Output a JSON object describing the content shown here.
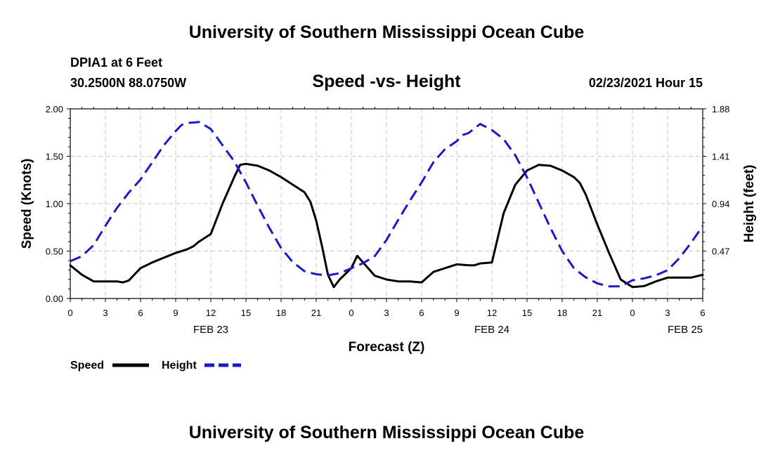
{
  "header": {
    "title_top": "University of Southern Mississippi Ocean Cube",
    "title_bottom": "University of Southern Mississippi Ocean Cube",
    "station": "DPIA1 at 6 Feet",
    "coords": "30.2500N 88.0750W",
    "datetime": "02/23/2021 Hour 15"
  },
  "chart_data": {
    "type": "line",
    "title": "Speed -vs- Height",
    "xlabel": "Forecast (Z)",
    "ylabel_left": "Speed (Knots)",
    "ylabel_right": "Height (feet)",
    "x_range": [
      0,
      54
    ],
    "x_unit": "hours from FEB 23 00Z",
    "ylim_left": [
      0,
      2.0
    ],
    "ylim_right": [
      0,
      1.88
    ],
    "yticks_left": [
      "0.00",
      "0.50",
      "1.00",
      "1.50",
      "2.00"
    ],
    "yticks_right": [
      "0.47",
      "0.94",
      "1.41",
      "1.88"
    ],
    "yticks_right_values": [
      0.47,
      0.94,
      1.41,
      1.88
    ],
    "xtick_labels": [
      "0",
      "3",
      "6",
      "9",
      "12",
      "15",
      "18",
      "21",
      "0",
      "3",
      "6",
      "9",
      "12",
      "15",
      "18",
      "21",
      "0",
      "3",
      "6"
    ],
    "date_labels": [
      {
        "label": "FEB 23",
        "hour": 12
      },
      {
        "label": "FEB 24",
        "hour": 36
      },
      {
        "label": "FEB 25",
        "hour": 52.5
      }
    ],
    "grid": true,
    "legend": {
      "position": "bottom-left",
      "entries": [
        "Speed",
        "Height"
      ]
    },
    "series": [
      {
        "name": "Speed",
        "axis": "left",
        "color": "#000000",
        "style": "solid",
        "x": [
          0,
          1,
          2,
          3,
          4,
          4.5,
          5,
          6,
          7,
          8,
          9,
          10,
          10.5,
          11,
          12,
          13,
          14,
          14.5,
          15,
          16,
          17,
          18,
          19,
          20,
          20.5,
          21,
          21.5,
          22,
          22.5,
          23,
          24,
          24.5,
          25,
          26,
          27,
          28,
          29,
          30,
          31,
          32,
          33,
          34,
          34.5,
          35,
          36,
          37,
          38,
          39,
          40,
          41,
          42,
          43,
          43.5,
          44,
          45,
          46,
          47,
          48,
          49,
          50,
          51,
          52,
          53,
          54
        ],
        "values": [
          0.35,
          0.25,
          0.18,
          0.18,
          0.18,
          0.17,
          0.19,
          0.32,
          0.38,
          0.43,
          0.48,
          0.52,
          0.55,
          0.6,
          0.68,
          1.0,
          1.28,
          1.41,
          1.42,
          1.4,
          1.35,
          1.28,
          1.2,
          1.12,
          1.02,
          0.82,
          0.55,
          0.25,
          0.12,
          0.2,
          0.32,
          0.45,
          0.38,
          0.24,
          0.2,
          0.18,
          0.18,
          0.17,
          0.28,
          0.32,
          0.36,
          0.35,
          0.35,
          0.37,
          0.38,
          0.9,
          1.2,
          1.35,
          1.41,
          1.4,
          1.35,
          1.28,
          1.22,
          1.1,
          0.78,
          0.48,
          0.2,
          0.12,
          0.13,
          0.18,
          0.22,
          0.22,
          0.22,
          0.25
        ]
      },
      {
        "name": "Height",
        "axis": "right",
        "color": "#1a1acc",
        "style": "dashed",
        "x": [
          0,
          1,
          2,
          3,
          4,
          5,
          6,
          7,
          8,
          9,
          9.5,
          10,
          11,
          12,
          13,
          14,
          15,
          16,
          17,
          18,
          19,
          20,
          21,
          22,
          23,
          24,
          25,
          26,
          27,
          28,
          29,
          30,
          31,
          32,
          33,
          33.5,
          34,
          35,
          36,
          37,
          38,
          39,
          40,
          41,
          42,
          43,
          44,
          45,
          46,
          47,
          48,
          49,
          50,
          51,
          52,
          53,
          54
        ],
        "values": [
          0.37,
          0.42,
          0.53,
          0.72,
          0.9,
          1.05,
          1.18,
          1.35,
          1.52,
          1.66,
          1.72,
          1.74,
          1.75,
          1.68,
          1.52,
          1.36,
          1.15,
          0.92,
          0.7,
          0.5,
          0.36,
          0.27,
          0.24,
          0.23,
          0.25,
          0.3,
          0.35,
          0.42,
          0.58,
          0.78,
          0.97,
          1.15,
          1.35,
          1.48,
          1.56,
          1.62,
          1.64,
          1.73,
          1.67,
          1.58,
          1.42,
          1.2,
          0.95,
          0.7,
          0.47,
          0.3,
          0.21,
          0.15,
          0.12,
          0.12,
          0.18,
          0.2,
          0.23,
          0.28,
          0.4,
          0.55,
          0.72
        ]
      }
    ]
  }
}
